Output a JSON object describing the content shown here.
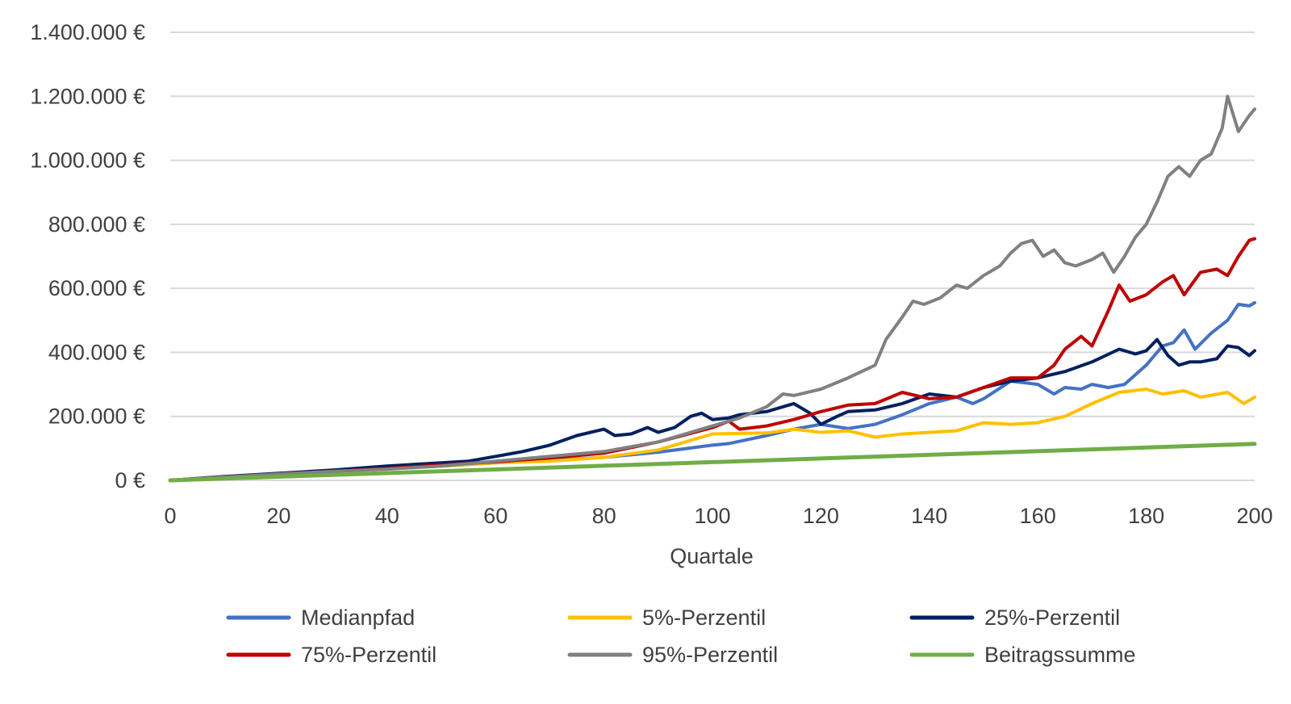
{
  "chart_data": {
    "type": "line",
    "xlabel": "Quartale",
    "ylabel": "",
    "xlim": [
      0,
      200
    ],
    "ylim": [
      0,
      1400000
    ],
    "x_ticks": [
      0,
      20,
      40,
      60,
      80,
      100,
      120,
      140,
      160,
      180,
      200
    ],
    "x_tick_labels": [
      "0",
      "20",
      "40",
      "60",
      "80",
      "100",
      "120",
      "140",
      "160",
      "180",
      "200"
    ],
    "y_ticks": [
      0,
      200000,
      400000,
      600000,
      800000,
      1000000,
      1200000,
      1400000
    ],
    "y_tick_labels": [
      "0 €",
      "200.000 €",
      "400.000 €",
      "600.000 €",
      "800.000 €",
      "1.000.000 €",
      "1.200.000 €",
      "1.400.000 €"
    ],
    "grid": true,
    "legend_position": "bottom",
    "series": [
      {
        "name": "Medianpfad",
        "color": "#4472C4",
        "x": [
          0,
          10,
          20,
          30,
          40,
          50,
          60,
          70,
          80,
          90,
          100,
          103,
          110,
          115,
          120,
          125,
          130,
          135,
          140,
          145,
          148,
          150,
          155,
          160,
          163,
          165,
          168,
          170,
          173,
          176,
          180,
          183,
          185,
          187,
          189,
          192,
          195,
          197,
          199,
          200
        ],
        "values": [
          0,
          10000,
          20000,
          28000,
          38000,
          45000,
          55000,
          62000,
          72000,
          88000,
          110000,
          115000,
          140000,
          160000,
          175000,
          162000,
          175000,
          205000,
          240000,
          260000,
          240000,
          255000,
          310000,
          300000,
          270000,
          290000,
          285000,
          300000,
          290000,
          300000,
          360000,
          420000,
          430000,
          470000,
          410000,
          460000,
          500000,
          550000,
          545000,
          555000
        ]
      },
      {
        "name": "5%-Perzentil",
        "color": "#FFC000",
        "x": [
          0,
          10,
          20,
          30,
          40,
          50,
          60,
          70,
          80,
          90,
          100,
          110,
          115,
          120,
          125,
          130,
          135,
          140,
          145,
          150,
          155,
          160,
          165,
          170,
          175,
          180,
          183,
          187,
          190,
          195,
          198,
          200
        ],
        "values": [
          0,
          10000,
          20000,
          28000,
          35000,
          45000,
          55000,
          60000,
          72000,
          95000,
          145000,
          148000,
          160000,
          150000,
          155000,
          135000,
          145000,
          150000,
          155000,
          180000,
          175000,
          180000,
          200000,
          240000,
          275000,
          285000,
          270000,
          280000,
          260000,
          275000,
          240000,
          260000
        ]
      },
      {
        "name": "25%-Perzentil",
        "color": "#002060",
        "x": [
          0,
          10,
          20,
          30,
          40,
          50,
          55,
          60,
          65,
          70,
          75,
          80,
          82,
          85,
          88,
          90,
          93,
          96,
          98,
          100,
          103,
          105,
          110,
          115,
          118,
          120,
          123,
          125,
          130,
          135,
          140,
          145,
          150,
          155,
          160,
          165,
          170,
          175,
          178,
          180,
          182,
          184,
          186,
          188,
          190,
          193,
          195,
          197,
          199,
          200
        ],
        "values": [
          0,
          12000,
          22000,
          32000,
          45000,
          55000,
          60000,
          75000,
          90000,
          110000,
          140000,
          160000,
          140000,
          145000,
          165000,
          150000,
          165000,
          200000,
          210000,
          190000,
          195000,
          205000,
          215000,
          240000,
          210000,
          175000,
          200000,
          215000,
          220000,
          240000,
          270000,
          260000,
          290000,
          310000,
          320000,
          340000,
          370000,
          410000,
          395000,
          405000,
          440000,
          390000,
          360000,
          370000,
          370000,
          380000,
          420000,
          415000,
          390000,
          405000
        ]
      },
      {
        "name": "75%-Perzentil",
        "color": "#C00000",
        "x": [
          0,
          10,
          20,
          30,
          40,
          50,
          60,
          70,
          80,
          90,
          100,
          103,
          105,
          110,
          115,
          120,
          125,
          130,
          135,
          140,
          145,
          150,
          155,
          160,
          163,
          165,
          168,
          170,
          173,
          175,
          177,
          180,
          183,
          185,
          187,
          190,
          193,
          195,
          197,
          199,
          200
        ],
        "values": [
          0,
          10000,
          20000,
          28000,
          37000,
          48000,
          58000,
          70000,
          85000,
          120000,
          165000,
          185000,
          160000,
          170000,
          190000,
          215000,
          235000,
          240000,
          275000,
          255000,
          260000,
          290000,
          320000,
          320000,
          360000,
          410000,
          450000,
          420000,
          530000,
          610000,
          560000,
          580000,
          620000,
          640000,
          580000,
          650000,
          660000,
          640000,
          700000,
          750000,
          755000
        ]
      },
      {
        "name": "95%-Perzentil",
        "color": "#808080",
        "x": [
          0,
          10,
          20,
          30,
          40,
          50,
          60,
          70,
          80,
          90,
          100,
          105,
          110,
          113,
          115,
          120,
          125,
          130,
          132,
          135,
          137,
          139,
          142,
          145,
          147,
          150,
          153,
          155,
          157,
          159,
          161,
          163,
          165,
          167,
          170,
          172,
          174,
          176,
          178,
          180,
          182,
          184,
          186,
          188,
          190,
          192,
          194,
          195,
          197,
          199,
          200
        ],
        "values": [
          0,
          10000,
          20000,
          28000,
          35000,
          45000,
          60000,
          75000,
          90000,
          120000,
          170000,
          195000,
          230000,
          270000,
          265000,
          285000,
          320000,
          360000,
          440000,
          510000,
          560000,
          550000,
          570000,
          610000,
          600000,
          640000,
          670000,
          710000,
          740000,
          750000,
          700000,
          720000,
          680000,
          670000,
          690000,
          710000,
          650000,
          700000,
          760000,
          800000,
          870000,
          950000,
          980000,
          950000,
          1000000,
          1020000,
          1100000,
          1200000,
          1090000,
          1140000,
          1160000
        ]
      },
      {
        "name": "Beitragssumme",
        "color": "#70AD47",
        "x": [
          0,
          200
        ],
        "values": [
          0,
          114000
        ]
      }
    ]
  }
}
